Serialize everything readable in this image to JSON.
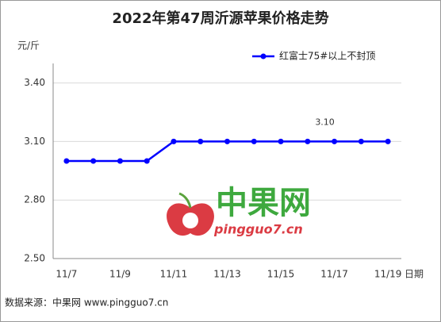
{
  "chart_data": {
    "type": "line",
    "title": "2022年第47周沂源苹果价格走势",
    "y_label": "元/斤",
    "x_label": "日期",
    "categories": [
      "11/7",
      null,
      "11/9",
      null,
      "11/11",
      null,
      "11/13",
      null,
      "11/15",
      null,
      "11/17",
      null,
      "11/19"
    ],
    "series": [
      {
        "name": "红富士75#以上不封顶",
        "color": "#0000ff",
        "values": [
          3.0,
          3.0,
          3.0,
          3.0,
          3.1,
          3.1,
          3.1,
          3.1,
          3.1,
          3.1,
          3.1,
          3.1,
          3.1
        ],
        "value_labels": [
          null,
          null,
          null,
          null,
          null,
          null,
          null,
          null,
          null,
          null,
          "3.10",
          null,
          null
        ]
      }
    ],
    "ylim": [
      2.5,
      3.5
    ],
    "yticks": [
      {
        "value": 2.5,
        "label": "2.50"
      },
      {
        "value": 2.8,
        "label": "2.80"
      },
      {
        "value": 3.1,
        "label": "3.10"
      },
      {
        "value": 3.4,
        "label": "3.40"
      }
    ],
    "grid": true,
    "legend_position": "top-right",
    "watermark": {
      "name": "中果网",
      "url": "pingguo7.cn"
    },
    "source": "数据来源：中果网 www.pingguo7.cn"
  }
}
